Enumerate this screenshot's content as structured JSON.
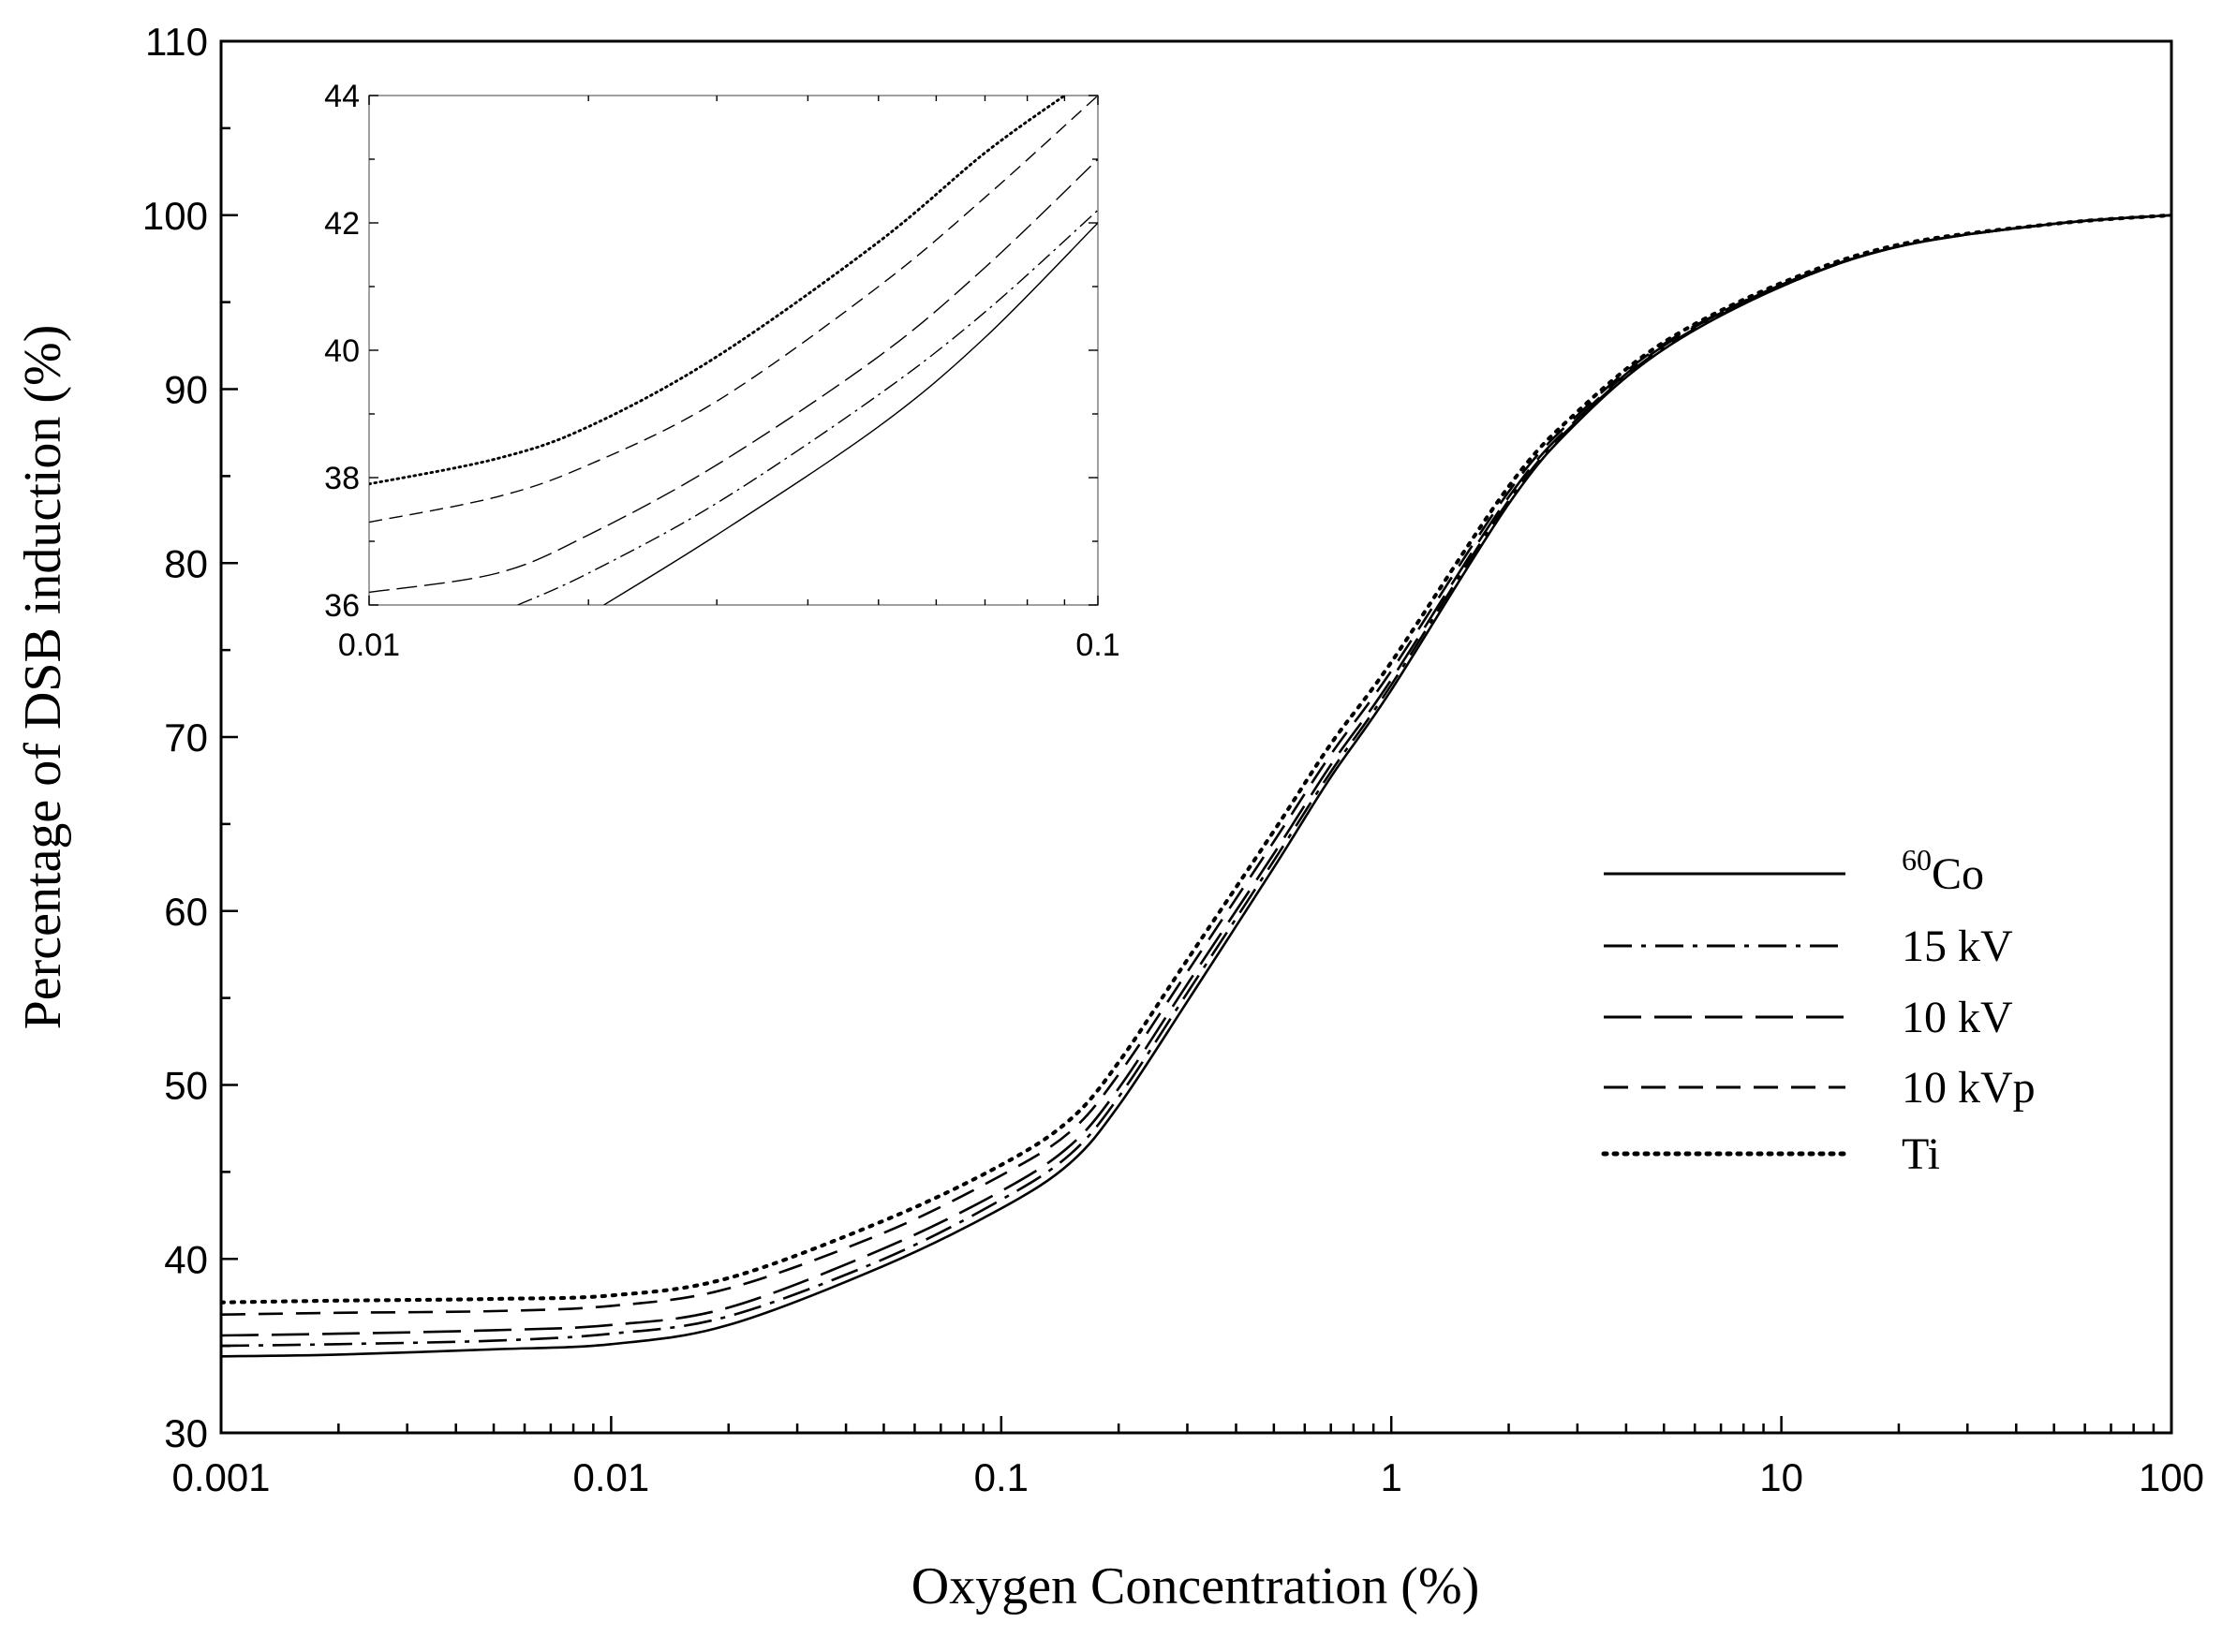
{
  "chart_data": [
    {
      "id": "main",
      "type": "line",
      "xscale": "log",
      "xlabel": "Oxygen Concentration (%)",
      "ylabel": "Percentage of  DSB induction (%)",
      "xlim": [
        0.001,
        100
      ],
      "ylim": [
        30,
        110
      ],
      "xticks": [
        "0.001",
        "0.01",
        "0.1",
        "1",
        "10",
        "100"
      ],
      "yticks": [
        "30",
        "40",
        "50",
        "60",
        "70",
        "80",
        "90",
        "100",
        "110"
      ],
      "legend_position": "center-right",
      "series": [
        {
          "name": "Co",
          "name_sup": "60",
          "style": "solid",
          "x": [
            0.001,
            0.002,
            0.005,
            0.01,
            0.02,
            0.05,
            0.1,
            0.15,
            0.2,
            0.3,
            0.5,
            0.7,
            1,
            2,
            3,
            5,
            10,
            20,
            50,
            100
          ],
          "y": [
            34.4,
            34.5,
            34.8,
            35.1,
            36.2,
            39.6,
            42.9,
            45.5,
            48.8,
            54.8,
            62.5,
            67.7,
            72.7,
            83.4,
            88.1,
            92.3,
            95.9,
            98.2,
            99.5,
            100
          ]
        },
        {
          "name": "15 kV",
          "style": "dashdot",
          "x": [
            0.001,
            0.002,
            0.005,
            0.01,
            0.02,
            0.05,
            0.1,
            0.15,
            0.2,
            0.3,
            0.5,
            0.7,
            1,
            2,
            3,
            5,
            10,
            20,
            50,
            100
          ],
          "y": [
            35.0,
            35.1,
            35.3,
            35.7,
            36.7,
            40.0,
            43.4,
            46.0,
            49.3,
            55.3,
            62.9,
            68.0,
            73.0,
            83.6,
            88.2,
            92.4,
            95.9,
            98.2,
            99.5,
            100
          ]
        },
        {
          "name": "10 kV",
          "style": "longdash",
          "x": [
            0.001,
            0.002,
            0.005,
            0.01,
            0.02,
            0.05,
            0.1,
            0.15,
            0.2,
            0.3,
            0.5,
            0.7,
            1,
            2,
            3,
            5,
            10,
            20,
            50,
            100
          ],
          "y": [
            35.6,
            35.7,
            35.9,
            36.2,
            37.2,
            40.6,
            43.9,
            46.5,
            49.8,
            55.8,
            63.3,
            68.4,
            73.3,
            83.8,
            88.3,
            92.5,
            96.0,
            98.2,
            99.5,
            100
          ]
        },
        {
          "name": "10 kVp",
          "style": "dash",
          "x": [
            0.001,
            0.002,
            0.005,
            0.01,
            0.02,
            0.05,
            0.1,
            0.15,
            0.2,
            0.3,
            0.5,
            0.7,
            1,
            2,
            3,
            5,
            10,
            20,
            50,
            100
          ],
          "y": [
            36.8,
            36.9,
            37.0,
            37.3,
            38.3,
            41.5,
            44.8,
            47.3,
            50.6,
            56.5,
            64.0,
            69.0,
            73.8,
            84.1,
            88.5,
            92.6,
            96.0,
            98.2,
            99.5,
            100
          ]
        },
        {
          "name": "Ti",
          "style": "dotted",
          "x": [
            0.001,
            0.002,
            0.005,
            0.01,
            0.02,
            0.05,
            0.1,
            0.15,
            0.2,
            0.3,
            0.5,
            0.7,
            1,
            2,
            3,
            5,
            10,
            20,
            50,
            100
          ],
          "y": [
            37.5,
            37.6,
            37.7,
            37.9,
            38.9,
            42.2,
            45.4,
            48.0,
            51.3,
            57.2,
            64.6,
            69.6,
            74.3,
            84.4,
            88.7,
            92.7,
            96.1,
            98.3,
            99.5,
            100
          ]
        }
      ]
    },
    {
      "id": "inset",
      "type": "line",
      "xscale": "log",
      "xlim": [
        0.01,
        0.1
      ],
      "ylim": [
        36,
        44
      ],
      "xticks": [
        "0.01",
        "0.1"
      ],
      "yticks": [
        "36",
        "38",
        "40",
        "42",
        "44"
      ],
      "series": [
        {
          "name": "Co",
          "style": "solid",
          "x": [
            0.021,
            0.03,
            0.05,
            0.07,
            0.1
          ],
          "y": [
            36.0,
            37.1,
            38.8,
            40.2,
            42.0
          ]
        },
        {
          "name": "15 kV",
          "style": "dashdot",
          "x": [
            0.016,
            0.02,
            0.03,
            0.05,
            0.07,
            0.1
          ],
          "y": [
            36.0,
            36.5,
            37.6,
            39.3,
            40.6,
            42.2
          ]
        },
        {
          "name": "10 kV",
          "style": "longdash",
          "x": [
            0.01,
            0.015,
            0.02,
            0.03,
            0.05,
            0.07,
            0.1
          ],
          "y": [
            36.2,
            36.5,
            37.1,
            38.2,
            39.9,
            41.3,
            43.0
          ]
        },
        {
          "name": "10 kVp",
          "style": "dash",
          "x": [
            0.01,
            0.015,
            0.02,
            0.03,
            0.05,
            0.07,
            0.1
          ],
          "y": [
            37.3,
            37.7,
            38.2,
            39.2,
            41.0,
            42.4,
            44.0
          ]
        },
        {
          "name": "Ti",
          "style": "dotted",
          "x": [
            0.01,
            0.015,
            0.02,
            0.03,
            0.05,
            0.07,
            0.09
          ],
          "y": [
            37.9,
            38.3,
            38.8,
            39.9,
            41.7,
            43.1,
            44.0
          ]
        }
      ]
    }
  ]
}
